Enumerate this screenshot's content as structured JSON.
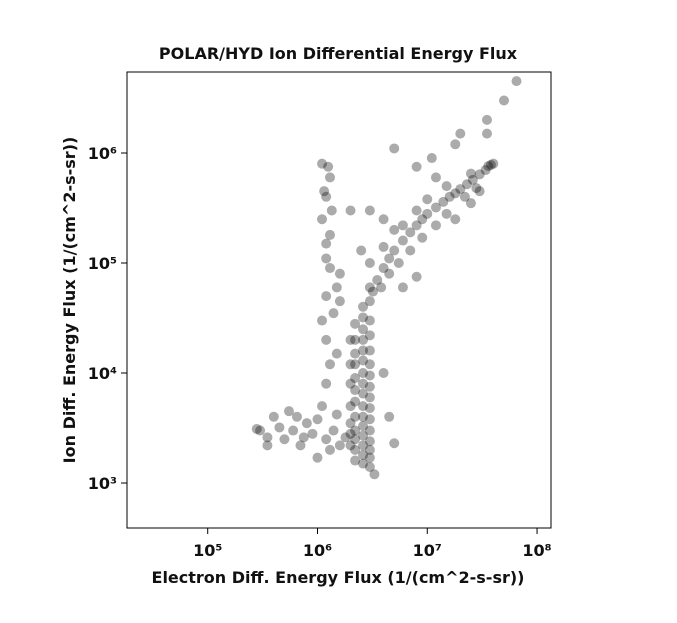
{
  "chart_data": {
    "type": "scatter",
    "title": "POLAR/HYD  Ion Differential Energy Flux",
    "xlabel": "Electron Diff. Energy Flux (1/(cm^2-s-sr))",
    "ylabel": "Ion Diff. Energy Flux (1/(cm^2-s-sr))",
    "xscale": "log",
    "yscale": "log",
    "xlim": [
      18400,
      134000000
    ],
    "ylim": [
      390,
      5450000
    ],
    "xticks": [
      {
        "value": 100000,
        "label": "10⁵"
      },
      {
        "value": 1000000,
        "label": "10⁶"
      },
      {
        "value": 10000000,
        "label": "10⁷"
      },
      {
        "value": 100000000,
        "label": "10⁸"
      }
    ],
    "yticks": [
      {
        "value": 1000,
        "label": "10³"
      },
      {
        "value": 10000,
        "label": "10⁴"
      },
      {
        "value": 100000,
        "label": "10⁵"
      },
      {
        "value": 1000000,
        "label": "10⁶"
      }
    ],
    "color": "#000000",
    "alpha": 0.33,
    "x": [
      2600000,
      2600000,
      2600000,
      2600000,
      2600000,
      2600000,
      2600000,
      2600000,
      2600000,
      2600000,
      2600000,
      2600000,
      2600000,
      2600000,
      2600000,
      2600000,
      2200000,
      2200000,
      2200000,
      2200000,
      2200000,
      2200000,
      2200000,
      2200000,
      2200000,
      2200000,
      2200000,
      2200000,
      3000000,
      3000000,
      3000000,
      3000000,
      3000000,
      3000000,
      3000000,
      3000000,
      3000000,
      3000000,
      3000000,
      3000000,
      3000000,
      3000000,
      3000000,
      3000000,
      2000000,
      2000000,
      2000000,
      2000000,
      2000000,
      2000000,
      2000000,
      300000,
      350000,
      400000,
      450000,
      500000,
      550000,
      600000,
      700000,
      800000,
      900000,
      1000000,
      1200000,
      1400000,
      1600000,
      1800000,
      350000,
      280000,
      650000,
      1100000,
      1500000,
      750000,
      1300000,
      3300000,
      1000000,
      1200000,
      1300000,
      1200000,
      1100000,
      1200000,
      1300000,
      1200000,
      1100000,
      1200000,
      1300000,
      1100000,
      1250000,
      1300000,
      1500000,
      1600000,
      1400000,
      1500000,
      1150000,
      1350000,
      1200000,
      3200000,
      3500000,
      4000000,
      4500000,
      5000000,
      6000000,
      7000000,
      8000000,
      9000000,
      10000000,
      12000000,
      14000000,
      16000000,
      18000000,
      20000000,
      23000000,
      26000000,
      30000000,
      34000000,
      38000000,
      40000000,
      36000000,
      28000000,
      22000000,
      15000000,
      12000000,
      9000000,
      7000000,
      5500000,
      4500000,
      3800000,
      6000000,
      10000000,
      15000000,
      25000000,
      8000000,
      5000000,
      4000000,
      3000000,
      2500000,
      18000000,
      25000000,
      30000000,
      6000000,
      8000000,
      65000000,
      50000000,
      35000000,
      35000000,
      20000000,
      18000000,
      5000000,
      8000000,
      12000000,
      3000000,
      4000000,
      2000000,
      11000000,
      4000000,
      5000000,
      4500000,
      1600000
    ],
    "values": [
      1500,
      1800,
      2200,
      2700,
      3300,
      4000,
      5000,
      6500,
      8000,
      10000,
      13000,
      16000,
      20000,
      25000,
      32000,
      40000,
      1600,
      2000,
      2500,
      3000,
      4000,
      5500,
      7000,
      9000,
      12000,
      15000,
      20000,
      28000,
      1400,
      1700,
      2000,
      2400,
      3000,
      3800,
      4800,
      6000,
      7500,
      9500,
      12000,
      16000,
      22000,
      30000,
      45000,
      60000,
      2200,
      2800,
      3500,
      5000,
      8000,
      12000,
      20000,
      3000,
      2600,
      4000,
      3200,
      2500,
      4500,
      3000,
      2200,
      3500,
      2800,
      3800,
      2500,
      3000,
      2200,
      2600,
      2200,
      3100,
      4000,
      5000,
      4200,
      2600,
      2000,
      1200,
      1700,
      8000,
      12000,
      20000,
      30000,
      50000,
      90000,
      150000,
      250000,
      400000,
      600000,
      800000,
      750000,
      180000,
      60000,
      80000,
      35000,
      15000,
      450000,
      300000,
      110000,
      55000,
      70000,
      90000,
      110000,
      130000,
      160000,
      190000,
      220000,
      250000,
      280000,
      320000,
      360000,
      400000,
      430000,
      470000,
      520000,
      570000,
      640000,
      700000,
      780000,
      800000,
      760000,
      480000,
      400000,
      280000,
      220000,
      170000,
      130000,
      100000,
      80000,
      60000,
      220000,
      380000,
      500000,
      650000,
      300000,
      200000,
      140000,
      100000,
      130000,
      250000,
      350000,
      450000,
      60000,
      75000,
      4500000,
      3000000,
      2000000,
      1500000,
      1500000,
      1200000,
      1100000,
      750000,
      600000,
      300000,
      250000,
      300000,
      900000,
      10000,
      2300,
      4000,
      45000
    ]
  }
}
